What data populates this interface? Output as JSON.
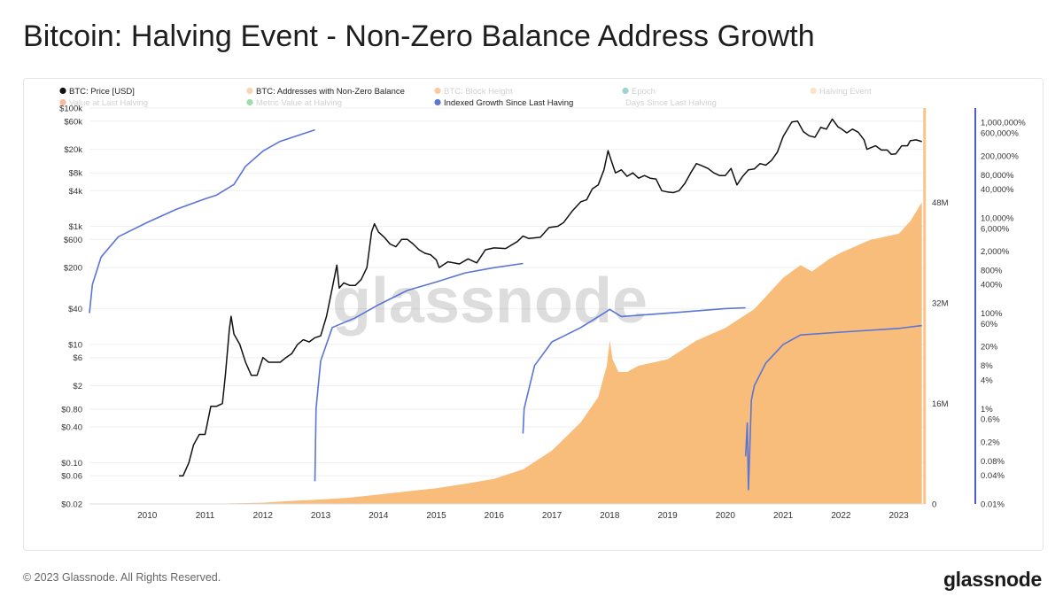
{
  "title": "Bitcoin: Halving Event - Non-Zero Balance Address Growth",
  "footer": {
    "copyright": "© 2023 Glassnode. All Rights Reserved.",
    "logo": "glassnode"
  },
  "watermark": "glassnode",
  "colors": {
    "price": "#111111",
    "addresses": "#f8bd7a",
    "indexed_growth": "#5a74d8",
    "halving_line": "#f9c58c",
    "right_axis": "#4a5fd3"
  },
  "legend": [
    {
      "label": "BTC: Price [USD]",
      "color": "#111111",
      "faded": false,
      "dot": true
    },
    {
      "label": "BTC: Addresses with Non-Zero Balance",
      "color": "#f9d6b0",
      "faded": false,
      "dot": true
    },
    {
      "label": "BTC: Block Height",
      "color": "#f28c28",
      "faded": true,
      "dot": true
    },
    {
      "label": "Epoch",
      "color": "#2aa198",
      "faded": true,
      "dot": true
    },
    {
      "label": "Halving Event",
      "color": "#f8c48a",
      "faded": true,
      "dot": true
    },
    {
      "label": "Value at Last Halving",
      "color": "#f26b2a",
      "faded": true,
      "dot": true
    },
    {
      "label": "Metric Value at Halving",
      "color": "#2bb34a",
      "faded": true,
      "dot": true
    },
    {
      "label": "Indexed Growth Since Last Having",
      "color": "#5a74d8",
      "faded": false,
      "dot": true
    },
    {
      "label": "Days Since Last Halving",
      "color": "#cccccc",
      "faded": true,
      "dot": false
    }
  ],
  "chart_data": {
    "type": "line",
    "x_axis": {
      "ticks": [
        "2010",
        "2011",
        "2012",
        "2013",
        "2014",
        "2015",
        "2016",
        "2017",
        "2018",
        "2019",
        "2020",
        "2021",
        "2022",
        "2023"
      ],
      "range": [
        2009.0,
        2023.42
      ]
    },
    "y_left": {
      "scale": "log",
      "label": "BTC: Price [USD]",
      "ticks": [
        "$100k",
        "$60k",
        "$20k",
        "$8k",
        "$4k",
        "$1k",
        "$600",
        "$200",
        "$40",
        "$10",
        "$6",
        "$2",
        "$0.80",
        "$0.40",
        "$0.10",
        "$0.06",
        "$0.02"
      ],
      "tick_values": [
        100000,
        60000,
        20000,
        8000,
        4000,
        1000,
        600,
        200,
        40,
        10,
        6,
        2,
        0.8,
        0.4,
        0.1,
        0.06,
        0.02
      ],
      "range": [
        0.02,
        100000
      ]
    },
    "y_mid": {
      "scale": "linear",
      "label": "BTC: Addresses with Non-Zero Balance",
      "ticks": [
        "48M",
        "32M",
        "16M",
        "0"
      ],
      "tick_values": [
        48000000,
        32000000,
        16000000,
        0
      ],
      "range": [
        0,
        63000000
      ]
    },
    "y_right": {
      "scale": "log",
      "label": "Indexed Growth Since Last Having",
      "ticks": [
        "1,000,000%",
        "600,000%",
        "200,000%",
        "80,000%",
        "40,000%",
        "10,000%",
        "6,000%",
        "2,000%",
        "800%",
        "400%",
        "100%",
        "60%",
        "20%",
        "8%",
        "4%",
        "1%",
        "0.6%",
        "0.2%",
        "0.08%",
        "0.04%",
        "0.01%"
      ],
      "tick_values": [
        1000000,
        600000,
        200000,
        80000,
        40000,
        10000,
        6000,
        2000,
        800,
        400,
        100,
        60,
        20,
        8,
        4,
        1,
        0.6,
        0.2,
        0.08,
        0.04,
        0.01
      ],
      "range": [
        0.01,
        2000000
      ]
    },
    "halving_event": {
      "x": 2023.4
    },
    "series": [
      {
        "name": "BTC: Price [USD]",
        "axis": "left",
        "points": [
          [
            2010.55,
            0.06
          ],
          [
            2010.62,
            0.06
          ],
          [
            2010.72,
            0.1
          ],
          [
            2010.8,
            0.2
          ],
          [
            2010.9,
            0.3
          ],
          [
            2011.0,
            0.3
          ],
          [
            2011.1,
            0.9
          ],
          [
            2011.2,
            0.9
          ],
          [
            2011.3,
            1.0
          ],
          [
            2011.35,
            3
          ],
          [
            2011.42,
            18
          ],
          [
            2011.45,
            30
          ],
          [
            2011.5,
            15
          ],
          [
            2011.6,
            10
          ],
          [
            2011.7,
            5
          ],
          [
            2011.8,
            3
          ],
          [
            2011.9,
            3
          ],
          [
            2012.0,
            6
          ],
          [
            2012.1,
            5
          ],
          [
            2012.2,
            5
          ],
          [
            2012.3,
            5
          ],
          [
            2012.4,
            6
          ],
          [
            2012.5,
            7
          ],
          [
            2012.6,
            10
          ],
          [
            2012.7,
            12
          ],
          [
            2012.8,
            11
          ],
          [
            2012.9,
            13
          ],
          [
            2013.0,
            14
          ],
          [
            2013.1,
            30
          ],
          [
            2013.2,
            90
          ],
          [
            2013.28,
            220
          ],
          [
            2013.32,
            90
          ],
          [
            2013.4,
            110
          ],
          [
            2013.5,
            100
          ],
          [
            2013.6,
            100
          ],
          [
            2013.7,
            125
          ],
          [
            2013.8,
            200
          ],
          [
            2013.88,
            800
          ],
          [
            2013.93,
            1100
          ],
          [
            2014.0,
            800
          ],
          [
            2014.1,
            650
          ],
          [
            2014.2,
            500
          ],
          [
            2014.3,
            450
          ],
          [
            2014.4,
            600
          ],
          [
            2014.5,
            600
          ],
          [
            2014.6,
            500
          ],
          [
            2014.7,
            400
          ],
          [
            2014.8,
            350
          ],
          [
            2014.9,
            330
          ],
          [
            2015.0,
            270
          ],
          [
            2015.05,
            200
          ],
          [
            2015.2,
            250
          ],
          [
            2015.4,
            230
          ],
          [
            2015.55,
            280
          ],
          [
            2015.7,
            240
          ],
          [
            2015.85,
            400
          ],
          [
            2016.0,
            430
          ],
          [
            2016.2,
            420
          ],
          [
            2016.4,
            550
          ],
          [
            2016.5,
            680
          ],
          [
            2016.6,
            620
          ],
          [
            2016.8,
            650
          ],
          [
            2016.95,
            950
          ],
          [
            2017.1,
            1000
          ],
          [
            2017.2,
            1150
          ],
          [
            2017.35,
            1800
          ],
          [
            2017.5,
            2600
          ],
          [
            2017.6,
            2800
          ],
          [
            2017.7,
            4300
          ],
          [
            2017.8,
            5000
          ],
          [
            2017.9,
            9000
          ],
          [
            2017.97,
            19000
          ],
          [
            2018.05,
            11000
          ],
          [
            2018.1,
            8000
          ],
          [
            2018.2,
            9000
          ],
          [
            2018.3,
            7000
          ],
          [
            2018.4,
            8000
          ],
          [
            2018.5,
            6500
          ],
          [
            2018.6,
            7200
          ],
          [
            2018.7,
            6500
          ],
          [
            2018.8,
            6300
          ],
          [
            2018.9,
            4000
          ],
          [
            2019.0,
            3800
          ],
          [
            2019.1,
            3700
          ],
          [
            2019.2,
            4000
          ],
          [
            2019.3,
            5300
          ],
          [
            2019.4,
            8000
          ],
          [
            2019.5,
            11500
          ],
          [
            2019.6,
            10500
          ],
          [
            2019.7,
            9500
          ],
          [
            2019.8,
            8000
          ],
          [
            2019.9,
            7200
          ],
          [
            2020.0,
            7200
          ],
          [
            2020.1,
            9500
          ],
          [
            2020.2,
            5000
          ],
          [
            2020.3,
            7000
          ],
          [
            2020.4,
            9000
          ],
          [
            2020.5,
            9300
          ],
          [
            2020.6,
            11500
          ],
          [
            2020.7,
            10800
          ],
          [
            2020.8,
            13000
          ],
          [
            2020.9,
            18000
          ],
          [
            2021.0,
            33000
          ],
          [
            2021.1,
            48000
          ],
          [
            2021.15,
            58000
          ],
          [
            2021.25,
            60000
          ],
          [
            2021.35,
            40000
          ],
          [
            2021.45,
            34000
          ],
          [
            2021.55,
            32000
          ],
          [
            2021.65,
            47000
          ],
          [
            2021.75,
            44000
          ],
          [
            2021.85,
            65000
          ],
          [
            2021.95,
            48000
          ],
          [
            2022.0,
            45000
          ],
          [
            2022.1,
            38000
          ],
          [
            2022.2,
            44000
          ],
          [
            2022.3,
            39000
          ],
          [
            2022.4,
            29000
          ],
          [
            2022.45,
            20000
          ],
          [
            2022.5,
            21000
          ],
          [
            2022.6,
            23000
          ],
          [
            2022.7,
            19500
          ],
          [
            2022.8,
            19500
          ],
          [
            2022.87,
            16500
          ],
          [
            2022.95,
            16800
          ],
          [
            2023.05,
            23000
          ],
          [
            2023.15,
            23000
          ],
          [
            2023.2,
            28000
          ],
          [
            2023.3,
            29000
          ],
          [
            2023.4,
            27000
          ]
        ]
      },
      {
        "name": "BTC: Addresses with Non-Zero Balance",
        "axis": "mid",
        "points": [
          [
            2009.0,
            0
          ],
          [
            2010.5,
            5000
          ],
          [
            2011.0,
            10000
          ],
          [
            2011.5,
            100000
          ],
          [
            2012.0,
            200000
          ],
          [
            2012.5,
            500000
          ],
          [
            2013.0,
            700000
          ],
          [
            2013.5,
            1000000
          ],
          [
            2014.0,
            1500000
          ],
          [
            2014.5,
            2000000
          ],
          [
            2015.0,
            2500000
          ],
          [
            2015.5,
            3200000
          ],
          [
            2016.0,
            4000000
          ],
          [
            2016.5,
            5500000
          ],
          [
            2017.0,
            8500000
          ],
          [
            2017.5,
            13000000
          ],
          [
            2017.8,
            17000000
          ],
          [
            2017.95,
            22000000
          ],
          [
            2018.0,
            26000000
          ],
          [
            2018.05,
            23000000
          ],
          [
            2018.15,
            21000000
          ],
          [
            2018.3,
            21000000
          ],
          [
            2018.5,
            22000000
          ],
          [
            2019.0,
            23000000
          ],
          [
            2019.5,
            26000000
          ],
          [
            2020.0,
            28000000
          ],
          [
            2020.5,
            31000000
          ],
          [
            2021.0,
            36000000
          ],
          [
            2021.3,
            38000000
          ],
          [
            2021.5,
            37000000
          ],
          [
            2021.8,
            39000000
          ],
          [
            2022.0,
            40000000
          ],
          [
            2022.5,
            42000000
          ],
          [
            2023.0,
            43000000
          ],
          [
            2023.2,
            45000000
          ],
          [
            2023.4,
            48000000
          ]
        ]
      },
      {
        "name": "Indexed Growth Since Last Having",
        "axis": "right",
        "segments": [
          [
            [
              2009.0,
              100
            ],
            [
              2009.05,
              400
            ],
            [
              2009.2,
              1500
            ],
            [
              2009.5,
              4000
            ],
            [
              2010.0,
              8000
            ],
            [
              2010.5,
              15000
            ],
            [
              2011.0,
              25000
            ],
            [
              2011.2,
              30000
            ],
            [
              2011.5,
              50000
            ],
            [
              2011.7,
              120000
            ],
            [
              2012.0,
              250000
            ],
            [
              2012.3,
              400000
            ],
            [
              2012.9,
              700000
            ]
          ],
          [
            [
              2012.9,
              0.03
            ],
            [
              2012.92,
              1
            ],
            [
              2013.0,
              10
            ],
            [
              2013.2,
              50
            ],
            [
              2013.6,
              80
            ],
            [
              2014.0,
              150
            ],
            [
              2014.5,
              300
            ],
            [
              2015.0,
              450
            ],
            [
              2015.5,
              700
            ],
            [
              2016.0,
              900
            ],
            [
              2016.5,
              1100
            ]
          ],
          [
            [
              2016.5,
              0.3
            ],
            [
              2016.52,
              1
            ],
            [
              2016.7,
              8
            ],
            [
              2017.0,
              25
            ],
            [
              2017.5,
              50
            ],
            [
              2017.9,
              100
            ],
            [
              2018.0,
              120
            ],
            [
              2018.2,
              85
            ],
            [
              2019.0,
              100
            ],
            [
              2020.0,
              125
            ],
            [
              2020.35,
              130
            ]
          ],
          [
            [
              2020.35,
              0.1
            ],
            [
              2020.38,
              0.5
            ],
            [
              2020.4,
              0.02
            ],
            [
              2020.45,
              1.5
            ],
            [
              2020.5,
              3
            ],
            [
              2020.7,
              9
            ],
            [
              2021.0,
              22
            ],
            [
              2021.3,
              35
            ],
            [
              2022.0,
              40
            ],
            [
              2023.0,
              48
            ],
            [
              2023.4,
              55
            ]
          ]
        ]
      }
    ],
    "grid": true,
    "legend_position": "top-left"
  }
}
